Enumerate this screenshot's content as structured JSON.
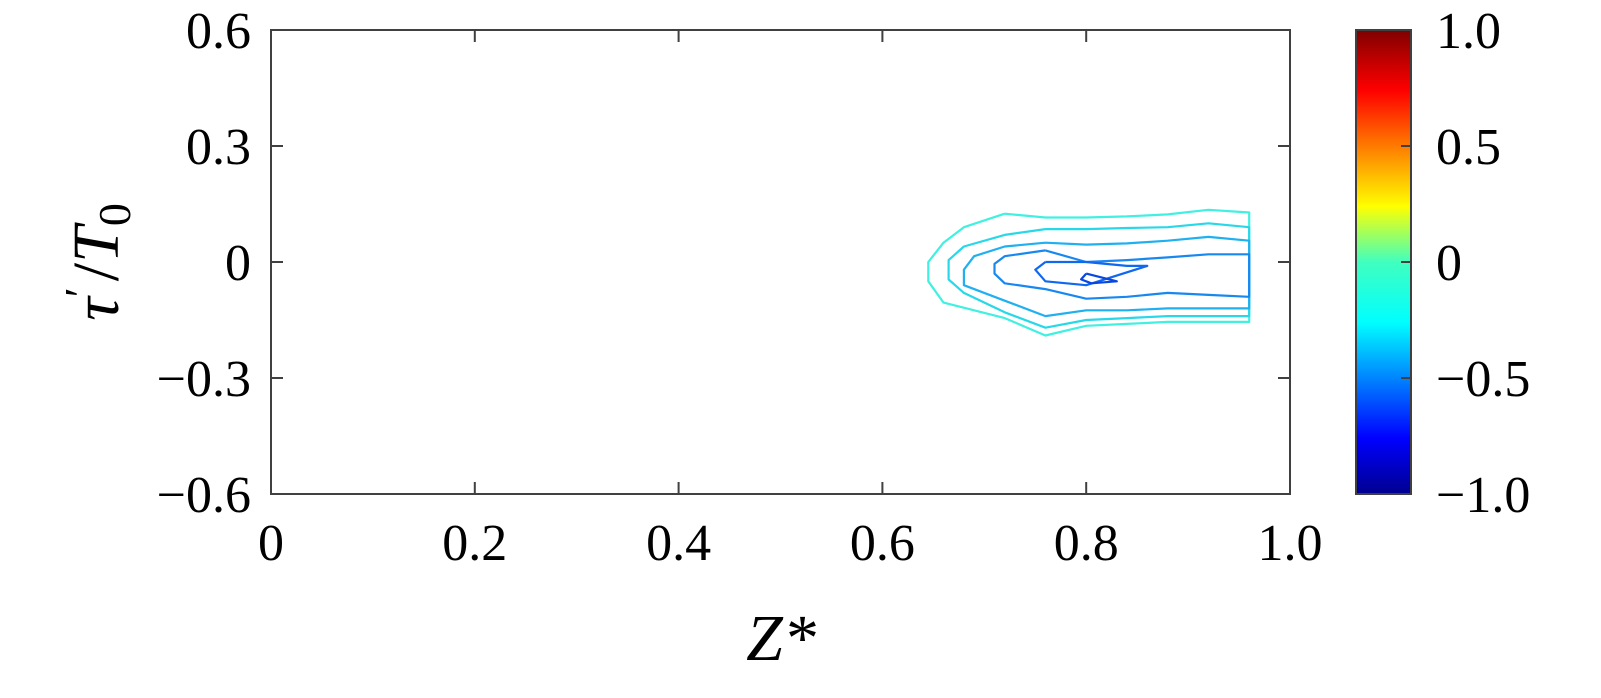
{
  "chart_data": {
    "type": "contour",
    "xlabel": "Z*",
    "ylabel": "τ′/T0",
    "ylabel_parts": {
      "symbol": "τ",
      "prime": "′",
      "slash": "/",
      "T": "T",
      "sub": "0"
    },
    "xlim": [
      0,
      1.0
    ],
    "ylim": [
      -0.6,
      0.6
    ],
    "xticks": [
      0,
      0.2,
      0.4,
      0.6,
      0.8,
      1.0
    ],
    "xtick_labels": [
      "0",
      "0.2",
      "0.4",
      "0.6",
      "0.8",
      "1.0"
    ],
    "yticks": [
      0.6,
      0.3,
      0,
      -0.3,
      -0.6
    ],
    "ytick_labels": [
      "0.6",
      "0.3",
      "0",
      "−0.3",
      "−0.6"
    ],
    "colorbar": {
      "range": [
        -1.0,
        1.0
      ],
      "ticks": [
        1.0,
        0.5,
        0,
        -0.5,
        -1.0
      ],
      "tick_labels": [
        "1.0",
        "0.5",
        "0",
        "−0.5",
        "−1.0"
      ],
      "colormap": "jet"
    },
    "contours": [
      {
        "color": "#40f0e0",
        "points": [
          [
            0.72,
            0.125
          ],
          [
            0.76,
            0.115
          ],
          [
            0.8,
            0.115
          ],
          [
            0.84,
            0.118
          ],
          [
            0.88,
            0.123
          ],
          [
            0.92,
            0.135
          ],
          [
            0.96,
            0.128
          ],
          [
            0.96,
            -0.155
          ],
          [
            0.92,
            -0.155
          ],
          [
            0.88,
            -0.155
          ],
          [
            0.84,
            -0.16
          ],
          [
            0.8,
            -0.165
          ],
          [
            0.76,
            -0.19
          ],
          [
            0.72,
            -0.145
          ],
          [
            0.66,
            -0.105
          ],
          [
            0.645,
            -0.05
          ],
          [
            0.645,
            0.0
          ],
          [
            0.66,
            0.05
          ],
          [
            0.68,
            0.09
          ],
          [
            0.72,
            0.125
          ]
        ]
      },
      {
        "color": "#28d8e8",
        "points": [
          [
            0.76,
            0.085
          ],
          [
            0.8,
            0.085
          ],
          [
            0.84,
            0.088
          ],
          [
            0.88,
            0.09
          ],
          [
            0.92,
            0.1
          ],
          [
            0.96,
            0.09
          ],
          [
            0.96,
            -0.14
          ],
          [
            0.92,
            -0.14
          ],
          [
            0.88,
            -0.14
          ],
          [
            0.84,
            -0.145
          ],
          [
            0.8,
            -0.15
          ],
          [
            0.76,
            -0.17
          ],
          [
            0.72,
            -0.13
          ],
          [
            0.68,
            -0.08
          ],
          [
            0.665,
            -0.045
          ],
          [
            0.665,
            0.005
          ],
          [
            0.68,
            0.04
          ],
          [
            0.72,
            0.07
          ],
          [
            0.76,
            0.085
          ]
        ]
      },
      {
        "color": "#20b0f0",
        "points": [
          [
            0.76,
            0.05
          ],
          [
            0.8,
            0.045
          ],
          [
            0.84,
            0.048
          ],
          [
            0.88,
            0.055
          ],
          [
            0.92,
            0.065
          ],
          [
            0.96,
            0.055
          ],
          [
            0.96,
            -0.12
          ],
          [
            0.92,
            -0.12
          ],
          [
            0.88,
            -0.12
          ],
          [
            0.84,
            -0.125
          ],
          [
            0.8,
            -0.125
          ],
          [
            0.76,
            -0.14
          ],
          [
            0.72,
            -0.1
          ],
          [
            0.68,
            -0.06
          ],
          [
            0.68,
            -0.02
          ],
          [
            0.69,
            0.015
          ],
          [
            0.72,
            0.04
          ],
          [
            0.76,
            0.05
          ]
        ]
      },
      {
        "color": "#1888f0",
        "points": [
          [
            0.76,
            0.03
          ],
          [
            0.8,
            0.0
          ],
          [
            0.84,
            0.005
          ],
          [
            0.88,
            0.012
          ],
          [
            0.92,
            0.02
          ],
          [
            0.96,
            0.02
          ],
          [
            0.96,
            -0.09
          ],
          [
            0.92,
            -0.085
          ],
          [
            0.88,
            -0.08
          ],
          [
            0.84,
            -0.09
          ],
          [
            0.8,
            -0.095
          ],
          [
            0.76,
            -0.07
          ],
          [
            0.72,
            -0.055
          ],
          [
            0.71,
            -0.03
          ],
          [
            0.71,
            -0.005
          ],
          [
            0.72,
            0.015
          ],
          [
            0.76,
            0.03
          ]
        ]
      },
      {
        "color": "#1068f0",
        "points": [
          [
            0.76,
            -0.0
          ],
          [
            0.8,
            -0.0
          ],
          [
            0.84,
            -0.01
          ],
          [
            0.86,
            -0.01
          ],
          [
            0.8,
            -0.06
          ],
          [
            0.76,
            -0.05
          ],
          [
            0.75,
            -0.02
          ],
          [
            0.76,
            -0.0
          ]
        ]
      },
      {
        "color": "#0848e0",
        "points": [
          [
            0.8,
            -0.03
          ],
          [
            0.83,
            -0.05
          ],
          [
            0.805,
            -0.055
          ],
          [
            0.795,
            -0.045
          ],
          [
            0.8,
            -0.03
          ]
        ]
      }
    ]
  }
}
